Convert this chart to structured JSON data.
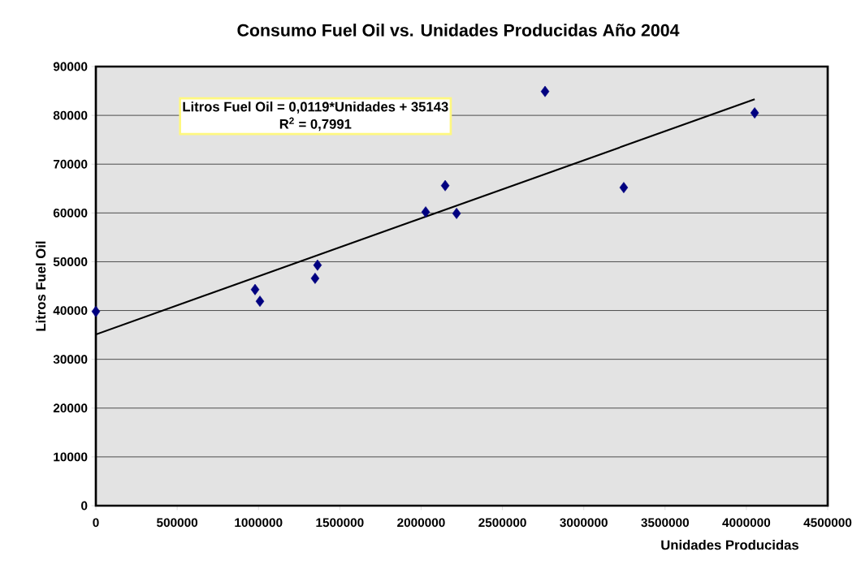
{
  "chart_data": {
    "type": "scatter",
    "title": "Consumo Fuel Oil vs. Unidades Producidas Año 2004",
    "xlabel": "Unidades Producidas",
    "ylabel": "Litros Fuel Oil",
    "annotations": [
      "Litros Fuel Oil = 0,0119*Unidades + 35143",
      "R$^{2}$ = 0,7991"
    ],
    "series": [
      {
        "marker": "diamond",
        "color": "#000080",
        "x": [
          0,
          979000,
          1009000,
          1348000,
          1363000,
          2028000,
          2148000,
          2218000,
          2762000,
          3246000,
          4051000
        ],
        "values": [
          39800,
          44300,
          41900,
          46600,
          49300,
          60200,
          65600,
          59900,
          84900,
          65200,
          80500
        ]
      },
      {
        "type": "line",
        "marker": "none",
        "color": "#000000",
        "x": [
          0,
          4051000
        ],
        "values": [
          35100,
          83300
        ]
      }
    ],
    "grid": "y",
    "xlim": [
      0,
      4500000
    ],
    "xticks": [
      0,
      500000,
      1000000,
      1500000,
      2000000,
      2500000,
      3000000,
      3500000,
      4000000,
      4500000
    ],
    "ylim": [
      0,
      90000
    ],
    "yticks": [
      0,
      10000,
      20000,
      30000,
      40000,
      50000,
      60000,
      70000,
      80000,
      90000
    ]
  }
}
